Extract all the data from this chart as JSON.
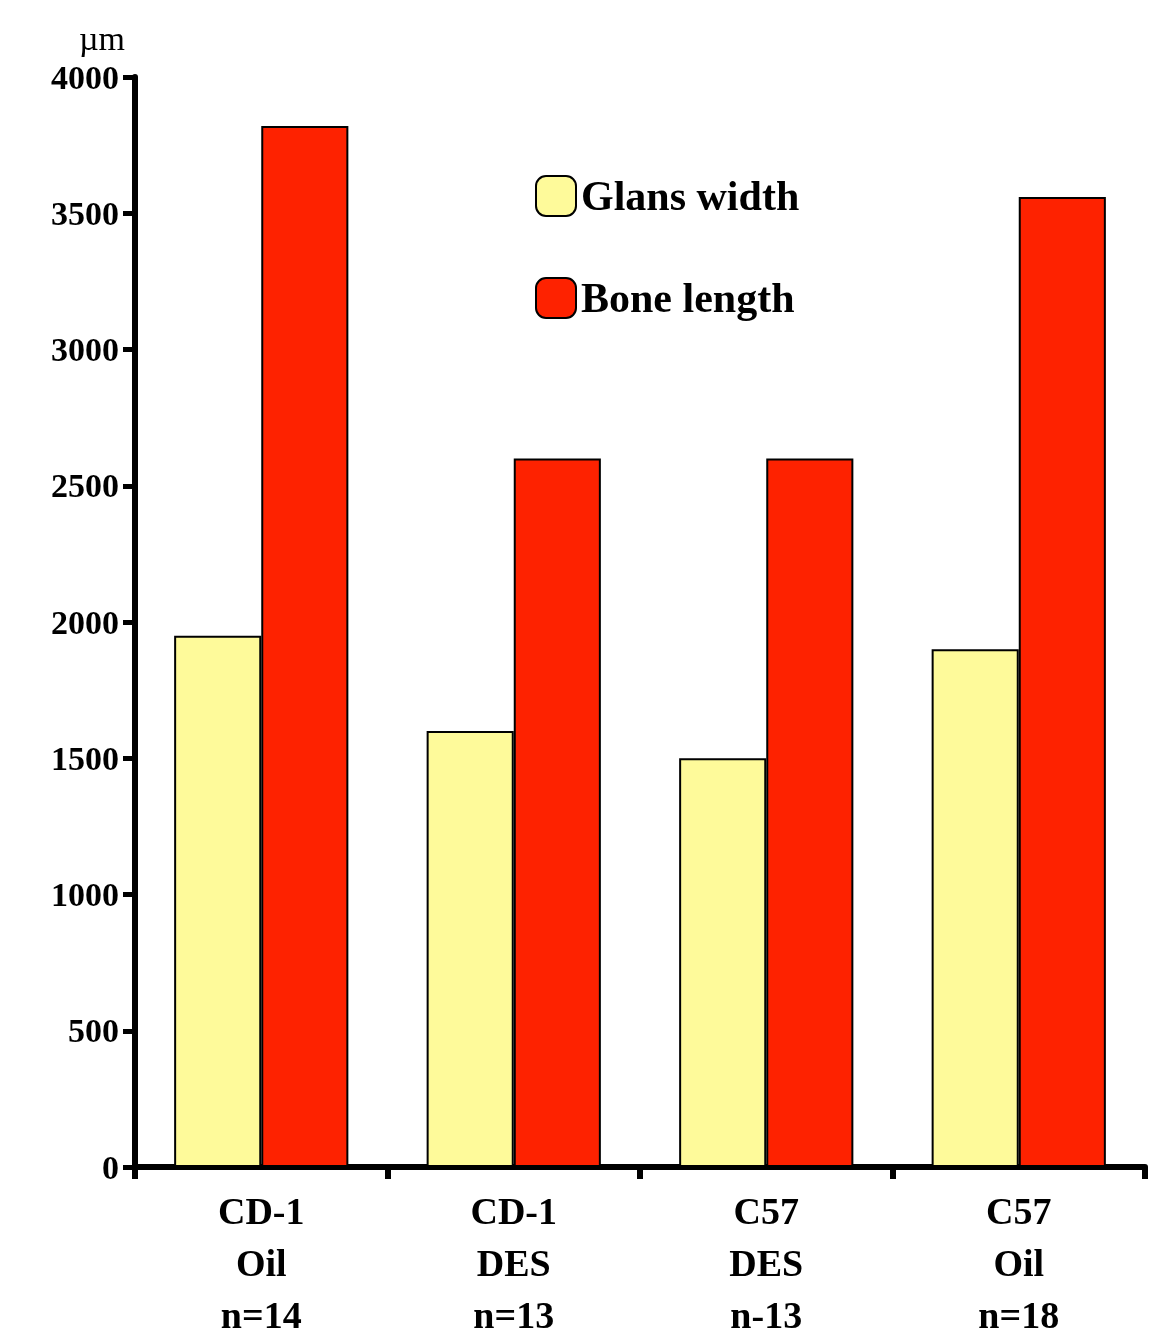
{
  "chart_data": {
    "type": "bar",
    "ylabel": "µm",
    "categories": [
      "CD-1\nOil\nn=14",
      "CD-1\nDES\nn=13",
      "C57\nDES\nn-13",
      "C57\nOil\nn=18"
    ],
    "series": [
      {
        "name": "Glans width",
        "color": "#fefa9a",
        "values": [
          1950,
          1600,
          1500,
          1900
        ]
      },
      {
        "name": "Bone length",
        "color": "#fe2200",
        "values": [
          3820,
          2600,
          2600,
          3560
        ]
      }
    ],
    "ylim": [
      0,
      4000
    ],
    "yticks": [
      0,
      500,
      1000,
      1500,
      2000,
      2500,
      3000,
      3500,
      4000
    ],
    "grid": false,
    "legend": "top right"
  }
}
